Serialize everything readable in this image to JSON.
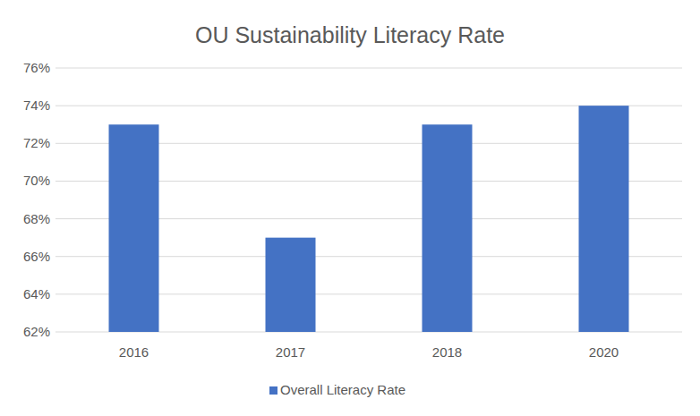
{
  "chart_data": {
    "type": "bar",
    "title": "OU Sustainability Literacy Rate",
    "categories": [
      "2016",
      "2017",
      "2018",
      "2020"
    ],
    "series": [
      {
        "name": "Overall Literacy Rate",
        "color": "#4472c4",
        "values": [
          73,
          67,
          73,
          74
        ]
      }
    ],
    "ylim": [
      62,
      76
    ],
    "yticks": [
      {
        "value": 62,
        "label": "62%"
      },
      {
        "value": 64,
        "label": "64%"
      },
      {
        "value": 66,
        "label": "66%"
      },
      {
        "value": 68,
        "label": "68%"
      },
      {
        "value": 70,
        "label": "70%"
      },
      {
        "value": 72,
        "label": "72%"
      },
      {
        "value": 74,
        "label": "74%"
      },
      {
        "value": 76,
        "label": "76%"
      }
    ],
    "grid": true,
    "legend": "bottom"
  }
}
